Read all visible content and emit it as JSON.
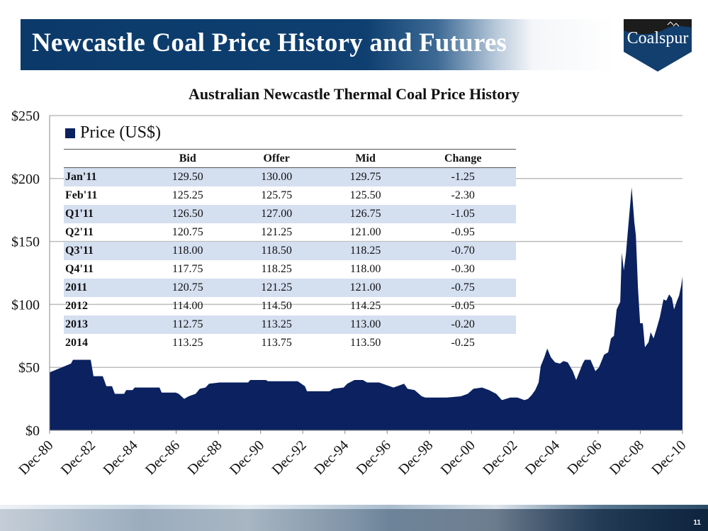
{
  "slide": {
    "title": "Newcastle Coal Price History and Futures",
    "logo_text": "Coalspur",
    "page_number": "11"
  },
  "colors": {
    "series": "#0b2160",
    "title_bar": "#0e3f70",
    "row_alt": "#d4dff0",
    "grid": "#bdbdbd"
  },
  "table": {
    "headers": [
      "",
      "Bid",
      "Offer",
      "Mid",
      "Change"
    ],
    "rows": [
      [
        "Jan'11",
        "129.50",
        "130.00",
        "129.75",
        "-1.25"
      ],
      [
        "Feb'11",
        "125.25",
        "125.75",
        "125.50",
        "-2.30"
      ],
      [
        "Q1'11",
        "126.50",
        "127.00",
        "126.75",
        "-1.05"
      ],
      [
        "Q2'11",
        "120.75",
        "121.25",
        "121.00",
        "-0.95"
      ],
      [
        "Q3'11",
        "118.00",
        "118.50",
        "118.25",
        "-0.70"
      ],
      [
        "Q4'11",
        "117.75",
        "118.25",
        "118.00",
        "-0.30"
      ],
      [
        "2011",
        "120.75",
        "121.25",
        "121.00",
        "-0.75"
      ],
      [
        "2012",
        "114.00",
        "114.50",
        "114.25",
        "-0.05"
      ],
      [
        "2013",
        "112.75",
        "113.25",
        "113.00",
        "-0.20"
      ],
      [
        "2014",
        "113.25",
        "113.75",
        "113.50",
        "-0.25"
      ]
    ]
  },
  "chart_data": {
    "type": "area",
    "title": "Australian Newcastle Thermal Coal Price History",
    "legend": [
      "Price (US$)"
    ],
    "legend_placement": "top-left",
    "xlabel": "",
    "ylabel": "",
    "xlim": [
      1980.92,
      2010.92
    ],
    "ylim": [
      0,
      250
    ],
    "yticks": [
      0,
      50,
      100,
      150,
      200,
      250
    ],
    "ytick_labels": [
      "$0",
      "$50",
      "$100",
      "$150",
      "$200",
      "$250"
    ],
    "xtick_labels": [
      "Dec-80",
      "Dec-82",
      "Dec-84",
      "Dec-86",
      "Dec-88",
      "Dec-90",
      "Dec-92",
      "Dec-94",
      "Dec-96",
      "Dec-98",
      "Dec-00",
      "Dec-02",
      "Dec-04",
      "Dec-06",
      "Dec-08",
      "Dec-10"
    ],
    "grid": true,
    "series": [
      {
        "name": "Price (US$)",
        "x": [
          1980.92,
          1981.93,
          1982.03,
          1982.87,
          1983.0,
          1983.44,
          1983.61,
          1983.88,
          1984.01,
          1984.45,
          1984.55,
          1984.85,
          1984.95,
          1986.13,
          1986.23,
          1986.9,
          1987.04,
          1987.3,
          1987.51,
          1987.84,
          1988.04,
          1988.31,
          1988.48,
          1988.98,
          1990.33,
          1990.43,
          1991.17,
          1991.27,
          1992.68,
          1993.02,
          1993.12,
          1994.19,
          1994.36,
          1994.86,
          1995.03,
          1995.37,
          1995.77,
          1995.97,
          1996.54,
          1996.88,
          1997.22,
          1997.55,
          1997.72,
          1997.89,
          1998.22,
          1998.56,
          1998.73,
          1999.74,
          2000.41,
          2000.74,
          2001.01,
          2001.42,
          2001.75,
          2002.09,
          2002.36,
          2002.76,
          2003.1,
          2003.43,
          2003.6,
          2003.77,
          2003.94,
          2004.1,
          2004.2,
          2004.37,
          2004.51,
          2004.68,
          2004.78,
          2004.88,
          2005.11,
          2005.28,
          2005.48,
          2005.72,
          2005.88,
          2006.05,
          2006.19,
          2006.29,
          2006.56,
          2006.79,
          2006.96,
          2007.13,
          2007.2,
          2007.4,
          2007.53,
          2007.67,
          2007.8,
          2007.97,
          2008.04,
          2008.14,
          2008.24,
          2008.34,
          2008.51,
          2008.64,
          2008.71,
          2008.81,
          2008.91,
          2009.04,
          2009.14,
          2009.31,
          2009.41,
          2009.55,
          2009.68,
          2009.85,
          2010.02,
          2010.15,
          2010.29,
          2010.42,
          2010.52,
          2010.66,
          2010.76,
          2010.86,
          2010.92
        ],
        "values": [
          46,
          53,
          56,
          56,
          43,
          43,
          35,
          35,
          29,
          29,
          32,
          32,
          34,
          34,
          30,
          30,
          29,
          25,
          27,
          29,
          33,
          34,
          37,
          38,
          38,
          40,
          40,
          39,
          39,
          35,
          31,
          31,
          33,
          34,
          37,
          40,
          40,
          38,
          38,
          36,
          34,
          36,
          37,
          33,
          32,
          27,
          26,
          26,
          27,
          29,
          33,
          34,
          32,
          29,
          24,
          26,
          26,
          24,
          25,
          28,
          32,
          38,
          51,
          58,
          65,
          58,
          56,
          54,
          53,
          55,
          54,
          47,
          40,
          47,
          53,
          56,
          56,
          47,
          50,
          57,
          60,
          62,
          73,
          75,
          96,
          102,
          141,
          127,
          140,
          160,
          193,
          165,
          155,
          113,
          85,
          85,
          66,
          70,
          78,
          73,
          80,
          90,
          104,
          103,
          108,
          105,
          96,
          103,
          107,
          115,
          122
        ]
      }
    ]
  }
}
